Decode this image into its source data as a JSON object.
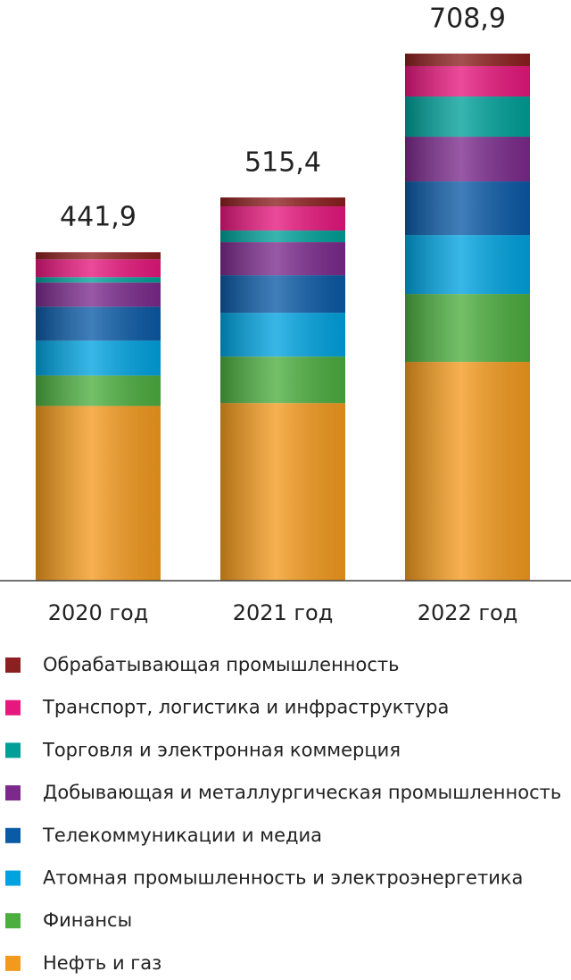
{
  "chart_data": {
    "type": "stacked_bar",
    "categories": [
      "2020 год",
      "2021 год",
      "2022 год"
    ],
    "series": [
      {
        "name": "Нефть и газ",
        "color": "#f39a1e",
        "values": [
          235.0,
          238.9,
          294.3
        ]
      },
      {
        "name": "Финансы",
        "color": "#4cae3f",
        "values": [
          40.9,
          62.5,
          91.3
        ]
      },
      {
        "name": "Атомная промышленность и электроэнергетика",
        "color": "#00a3e0",
        "values": [
          46.9,
          58.9,
          79.3
        ]
      },
      {
        "name": "Телекоммуникации и медиа",
        "color": "#0b5aa6",
        "values": [
          45.7,
          50.5,
          72.1
        ]
      },
      {
        "name": "Добывающая и металлургическая промышленность",
        "color": "#7b2a8c",
        "values": [
          32.5,
          44.5,
          60.1
        ]
      },
      {
        "name": "Торговля и электронная коммерция",
        "color": "#00a099",
        "values": [
          7.2,
          15.6,
          54.1
        ]
      },
      {
        "name": "Транспорт, логистика и инфраструктура",
        "color": "#e6177d",
        "values": [
          24.0,
          32.5,
          40.9
        ]
      },
      {
        "name": "Обрабатывающая промышленность",
        "color": "#8c1f1f",
        "values": [
          9.6,
          12.0,
          16.8
        ]
      }
    ],
    "totals": [
      441.9,
      515.4,
      708.9
    ],
    "value_labels": [
      "441,9",
      "515,4",
      "708,9"
    ],
    "ylim": [
      0,
      781
    ]
  }
}
